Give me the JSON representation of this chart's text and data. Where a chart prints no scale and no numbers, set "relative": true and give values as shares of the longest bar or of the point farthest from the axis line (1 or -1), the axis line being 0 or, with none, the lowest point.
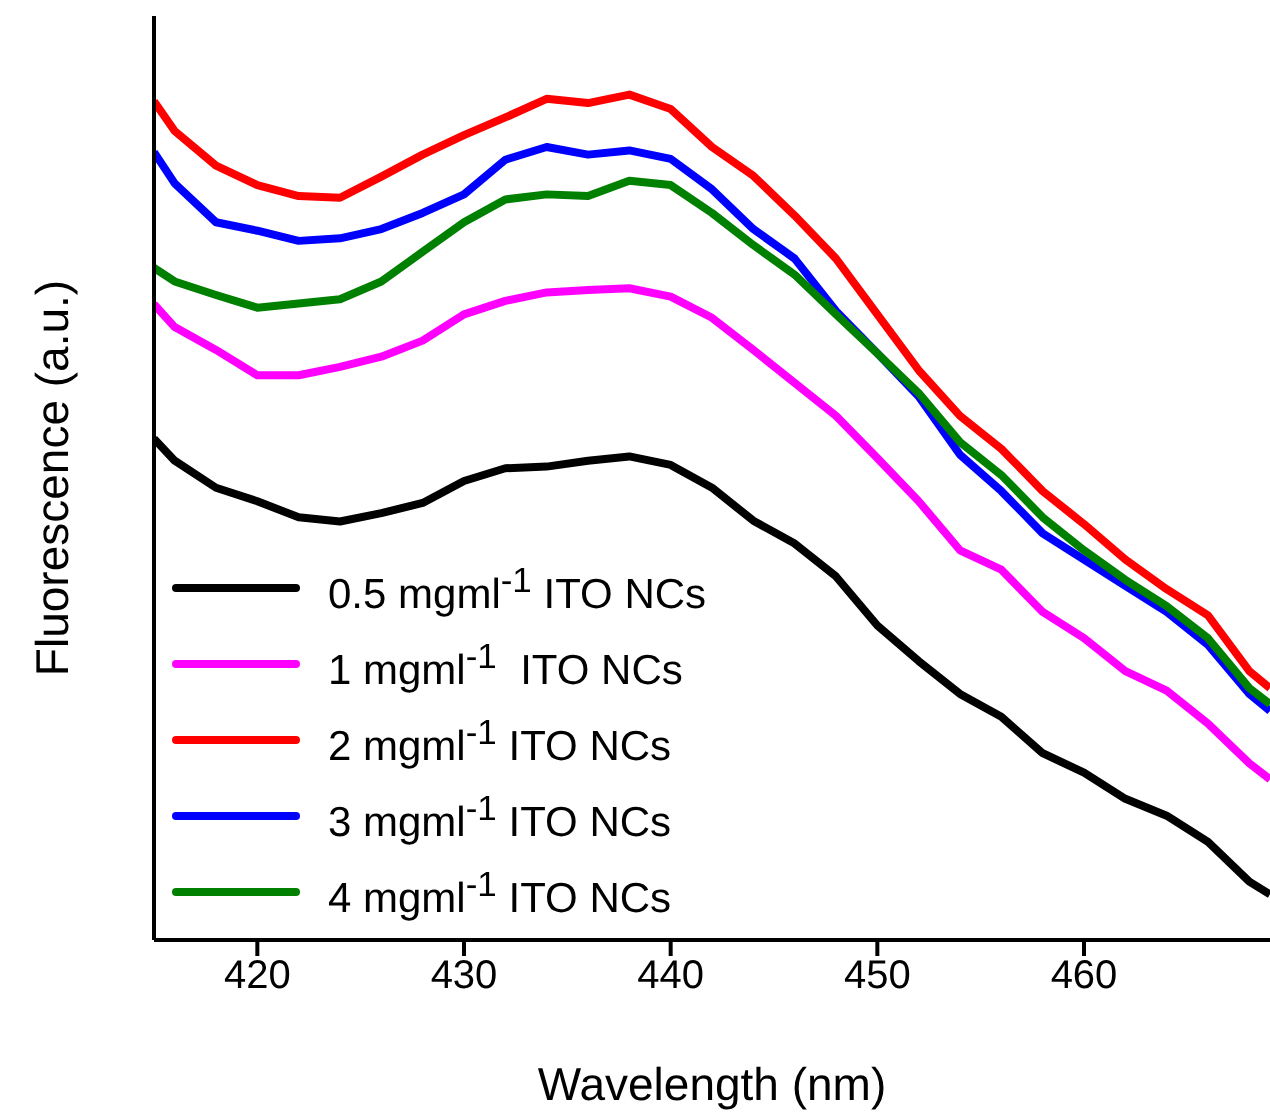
{
  "chart_data": {
    "type": "line",
    "xlabel": "Wavelength (nm)",
    "ylabel": "Fluorescence (a.u.)",
    "relative": true,
    "xlim": [
      415,
      469
    ],
    "xticks": [
      420,
      430,
      440,
      450,
      460
    ],
    "legend": "bottom left",
    "grid": false,
    "marker": "none",
    "line_style": "solid",
    "x": [
      415,
      416,
      418,
      420,
      422,
      424,
      426,
      428,
      430,
      432,
      434,
      436,
      438,
      440,
      442,
      444,
      446,
      448,
      450,
      452,
      454,
      456,
      458,
      460,
      462,
      464,
      466,
      468,
      469
    ],
    "series": [
      {
        "name": "0.5 mgml$^{-1}$ ITO NCs",
        "color": "#000000",
        "values": [
          0.593,
          0.567,
          0.535,
          0.519,
          0.5,
          0.495,
          0.505,
          0.517,
          0.543,
          0.558,
          0.56,
          0.567,
          0.572,
          0.562,
          0.535,
          0.496,
          0.469,
          0.43,
          0.372,
          0.33,
          0.291,
          0.264,
          0.221,
          0.198,
          0.167,
          0.147,
          0.116,
          0.069,
          0.054
        ]
      },
      {
        "name": "1 mgml$^{-1}$  ITO NCs",
        "color": "#ff00ff",
        "values": [
          0.752,
          0.725,
          0.698,
          0.668,
          0.668,
          0.678,
          0.69,
          0.709,
          0.74,
          0.756,
          0.766,
          0.769,
          0.771,
          0.761,
          0.736,
          0.698,
          0.659,
          0.62,
          0.57,
          0.519,
          0.461,
          0.438,
          0.388,
          0.357,
          0.318,
          0.295,
          0.256,
          0.209,
          0.19
        ]
      },
      {
        "name": "2 mgml$^{-1}$ ITO NCs",
        "color": "#ff0000",
        "values": [
          0.992,
          0.957,
          0.916,
          0.893,
          0.88,
          0.878,
          0.903,
          0.929,
          0.952,
          0.973,
          0.995,
          0.99,
          1.0,
          0.983,
          0.938,
          0.904,
          0.857,
          0.806,
          0.74,
          0.674,
          0.62,
          0.581,
          0.531,
          0.492,
          0.45,
          0.415,
          0.384,
          0.318,
          0.298
        ]
      },
      {
        "name": "3 mgml$^{-1}$ ITO NCs",
        "color": "#0000ff",
        "values": [
          0.932,
          0.895,
          0.849,
          0.839,
          0.827,
          0.83,
          0.841,
          0.86,
          0.882,
          0.923,
          0.938,
          0.929,
          0.934,
          0.924,
          0.888,
          0.841,
          0.806,
          0.744,
          0.694,
          0.643,
          0.574,
          0.531,
          0.481,
          0.45,
          0.419,
          0.388,
          0.349,
          0.291,
          0.271
        ]
      },
      {
        "name": "4 mgml$^{-1}$ ITO NCs",
        "color": "#008000",
        "values": [
          0.795,
          0.779,
          0.763,
          0.748,
          0.753,
          0.758,
          0.779,
          0.814,
          0.849,
          0.876,
          0.882,
          0.88,
          0.898,
          0.893,
          0.86,
          0.822,
          0.787,
          0.74,
          0.694,
          0.647,
          0.589,
          0.55,
          0.5,
          0.461,
          0.426,
          0.395,
          0.357,
          0.298,
          0.279
        ]
      }
    ]
  }
}
